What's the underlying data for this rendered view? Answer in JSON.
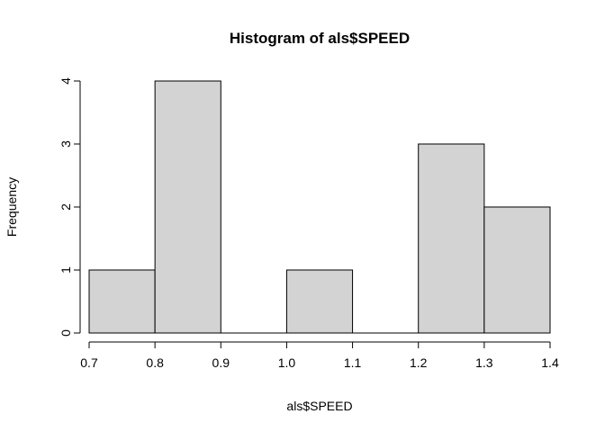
{
  "chart_data": {
    "type": "bar",
    "title": "Histogram of als$SPEED",
    "xlabel": "als$SPEED",
    "ylabel": "Frequency",
    "bins": [
      {
        "start": 0.7,
        "end": 0.8,
        "count": 1
      },
      {
        "start": 0.8,
        "end": 0.9,
        "count": 4
      },
      {
        "start": 0.9,
        "end": 1.0,
        "count": 0
      },
      {
        "start": 1.0,
        "end": 1.1,
        "count": 1
      },
      {
        "start": 1.1,
        "end": 1.2,
        "count": 0
      },
      {
        "start": 1.2,
        "end": 1.3,
        "count": 3
      },
      {
        "start": 1.3,
        "end": 1.4,
        "count": 2
      }
    ],
    "xlim": [
      0.7,
      1.4
    ],
    "ylim": [
      0,
      4
    ],
    "x_ticks": [
      "0.7",
      "0.8",
      "0.9",
      "1.0",
      "1.1",
      "1.2",
      "1.3",
      "1.4"
    ],
    "y_ticks": [
      "0",
      "1",
      "2",
      "3",
      "4"
    ],
    "colors": {
      "bar_fill": "#d3d3d3",
      "bar_stroke": "#000000"
    },
    "grid": false,
    "legend": "none"
  }
}
